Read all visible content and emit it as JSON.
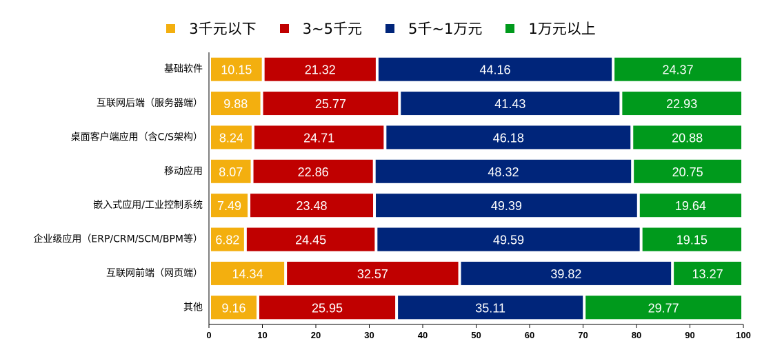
{
  "chart_data": {
    "type": "bar",
    "orientation": "horizontal",
    "stacked": true,
    "categories": [
      "基础软件",
      "互联网后端（服务器端）",
      "桌面客户端应用（含C/S架构）",
      "移动应用",
      "嵌入式应用/工业控制系统",
      "企业级应用（ERP/CRM/SCM/BPM等）",
      "互联网前端（网页端）",
      "其他"
    ],
    "series": [
      {
        "name": "3千元以下",
        "color": "#F3AF0F",
        "values": [
          10.15,
          9.88,
          8.24,
          8.07,
          7.49,
          6.82,
          14.34,
          9.16
        ]
      },
      {
        "name": "3~5千元",
        "color": "#C00000",
        "values": [
          21.32,
          25.77,
          24.71,
          22.86,
          23.48,
          24.45,
          32.57,
          25.95
        ]
      },
      {
        "name": "5千~1万元",
        "color": "#00257A",
        "values": [
          44.16,
          41.43,
          46.18,
          48.32,
          49.39,
          49.59,
          39.82,
          35.11
        ]
      },
      {
        "name": "1万元以上",
        "color": "#009A1C",
        "values": [
          24.37,
          22.93,
          20.88,
          20.75,
          19.64,
          19.15,
          13.27,
          29.77
        ]
      }
    ],
    "xlim": [
      0,
      100
    ],
    "xticks": [
      0,
      10,
      20,
      30,
      40,
      50,
      60,
      70,
      80,
      90,
      100
    ],
    "legend_position": "top",
    "grid": false
  }
}
